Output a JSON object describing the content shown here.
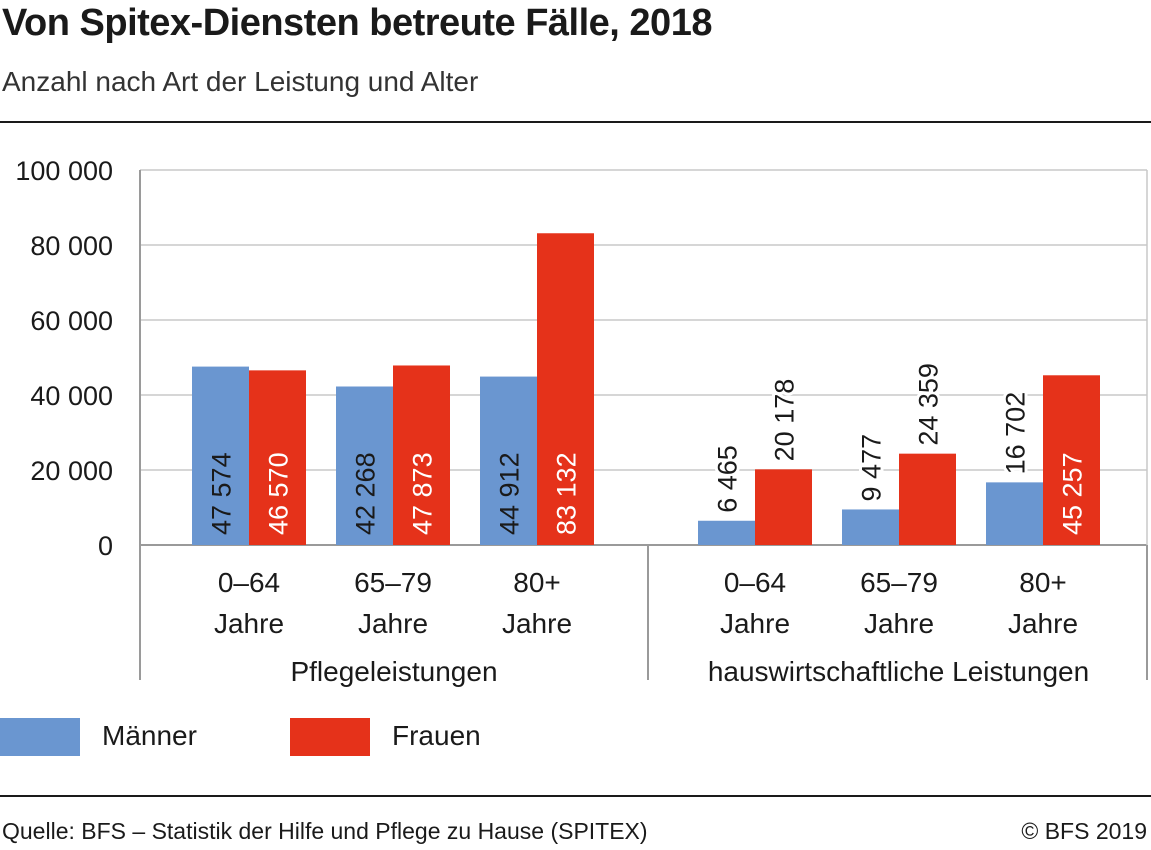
{
  "title": "Von Spitex-Diensten betreute Fälle, 2018",
  "subtitle": "Anzahl nach Art der Leistung und Alter",
  "source": "Quelle: BFS – Statistik der Hilfe und Pflege zu Hause (SPITEX)",
  "copyright": "© BFS 2019",
  "colors": {
    "maenner": "#6a96d0",
    "frauen": "#e5321a",
    "grid": "#c8c8c8",
    "axis": "#9a9a9a"
  },
  "legend": [
    {
      "label": "Männer",
      "color": "#6a96d0"
    },
    {
      "label": "Frauen",
      "color": "#e5321a"
    }
  ],
  "chart_data": {
    "type": "bar",
    "ylim": [
      0,
      100000
    ],
    "yticks": [
      0,
      20000,
      40000,
      60000,
      80000,
      100000
    ],
    "ytick_labels": [
      "0",
      "20 000",
      "40 000",
      "60 000",
      "80 000",
      "100 000"
    ],
    "grid": true,
    "groups": [
      {
        "label": "Pflegeleistungen",
        "categories": [
          [
            "0–64",
            "Jahre"
          ],
          [
            "65–79",
            "Jahre"
          ],
          [
            "80+",
            "Jahre"
          ]
        ],
        "series": [
          {
            "name": "Männer",
            "values": [
              47574,
              42268,
              44912
            ],
            "labels": [
              "47 574",
              "42 268",
              "44 912"
            ]
          },
          {
            "name": "Frauen",
            "values": [
              46570,
              47873,
              83132
            ],
            "labels": [
              "46 570",
              "47 873",
              "83 132"
            ]
          }
        ]
      },
      {
        "label": "hauswirtschaftliche Leistungen",
        "categories": [
          [
            "0–64",
            "Jahre"
          ],
          [
            "65–79",
            "Jahre"
          ],
          [
            "80+",
            "Jahre"
          ]
        ],
        "series": [
          {
            "name": "Männer",
            "values": [
              6465,
              9477,
              16702
            ],
            "labels": [
              "6 465",
              "9 477",
              "16 702"
            ]
          },
          {
            "name": "Frauen",
            "values": [
              20178,
              24359,
              45257
            ],
            "labels": [
              "20 178",
              "24 359",
              "45 257"
            ]
          }
        ]
      }
    ],
    "legend_position": "bottom-left"
  }
}
